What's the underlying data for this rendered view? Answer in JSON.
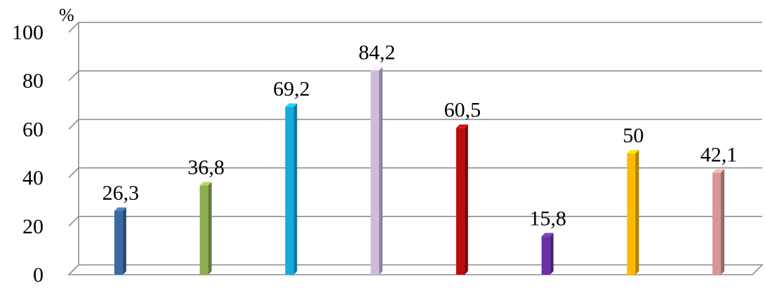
{
  "chart_data": {
    "type": "bar",
    "title": "",
    "xlabel": "",
    "ylabel": "",
    "unit_label": "%",
    "ylim": [
      0,
      100
    ],
    "y_ticks": [
      "0",
      "20",
      "40",
      "60",
      "80",
      "100"
    ],
    "grid": true,
    "legend": "none",
    "categories": [
      "",
      "",
      "",
      "",
      "",
      "",
      "",
      ""
    ],
    "values": [
      26.3,
      36.8,
      69.2,
      84.2,
      60.5,
      15.8,
      50,
      42.1
    ],
    "value_labels": [
      "26,3",
      "36,8",
      "69,2",
      "84,2",
      "60,5",
      "15,8",
      "50",
      "42,1"
    ],
    "colors": [
      "#3b6aa3",
      "#8fae4f",
      "#18a9df",
      "#cdbcdc",
      "#bb0c0c",
      "#6a30a5",
      "#fbba0a",
      "#d89695"
    ]
  }
}
